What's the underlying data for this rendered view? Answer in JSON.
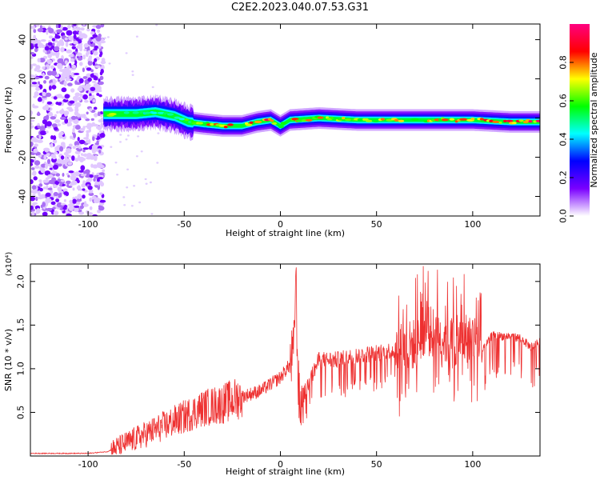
{
  "title": "C2E2.2023.040.07.53.G31",
  "chart_data": [
    {
      "type": "heatmap",
      "xlabel": "Height of straight line (km)",
      "ylabel": "Frequency (Hz)",
      "xlim": [
        -130,
        135
      ],
      "ylim": [
        -50,
        48
      ],
      "x_ticks": [
        -100,
        -50,
        0,
        50,
        100
      ],
      "y_ticks": [
        -40,
        -20,
        0,
        20,
        40
      ],
      "colorbar": {
        "label": "Normalized spectral amplitude",
        "range": [
          0,
          1
        ],
        "ticks": [
          "0.0",
          "0.2",
          "0.4",
          "0.6",
          "0.8"
        ],
        "colors": [
          "#ffffff",
          "#7a00ff",
          "#0000ff",
          "#00ffff",
          "#00ff00",
          "#ffff00",
          "#ff0000",
          "#ff0080"
        ]
      },
      "noise_region_x": [
        -130,
        -92
      ],
      "ridge": [
        {
          "x": -92,
          "y": 2,
          "v": 0.5
        },
        {
          "x": -85,
          "y": 2,
          "v": 0.7
        },
        {
          "x": -75,
          "y": 2,
          "v": 0.55
        },
        {
          "x": -65,
          "y": 3,
          "v": 0.5
        },
        {
          "x": -55,
          "y": 1,
          "v": 0.55
        },
        {
          "x": -48,
          "y": -2,
          "v": 0.6
        },
        {
          "x": -40,
          "y": -3,
          "v": 0.75
        },
        {
          "x": -30,
          "y": -4,
          "v": 0.8
        },
        {
          "x": -20,
          "y": -4,
          "v": 0.85
        },
        {
          "x": -12,
          "y": -2,
          "v": 0.85
        },
        {
          "x": -5,
          "y": -1,
          "v": 0.9
        },
        {
          "x": 0,
          "y": -4,
          "v": 0.6
        },
        {
          "x": 5,
          "y": -1,
          "v": 0.8
        },
        {
          "x": 20,
          "y": 0,
          "v": 0.75
        },
        {
          "x": 40,
          "y": -1,
          "v": 0.7
        },
        {
          "x": 60,
          "y": -1,
          "v": 0.75
        },
        {
          "x": 80,
          "y": -1,
          "v": 0.75
        },
        {
          "x": 100,
          "y": -1,
          "v": 0.8
        },
        {
          "x": 120,
          "y": -2,
          "v": 0.85
        },
        {
          "x": 135,
          "y": -2,
          "v": 0.9
        }
      ]
    },
    {
      "type": "line",
      "xlabel": "Height of straight line (km)",
      "ylabel": "SNR (10 * v/v)",
      "y_multiplier": "(x10⁴)",
      "xlim": [
        -130,
        135
      ],
      "ylim": [
        0,
        2.2
      ],
      "x_ticks": [
        -100,
        -50,
        0,
        50,
        100
      ],
      "y_ticks": [
        "0.5",
        "1.0",
        "1.5",
        "2.0"
      ],
      "line_color": "#ee3030",
      "series": [
        {
          "x": [
            -130,
            -100,
            -90,
            -85,
            -80,
            -70,
            -60,
            -50,
            -40,
            -30,
            -20,
            -10,
            0,
            5,
            7,
            8,
            9,
            10,
            12,
            15,
            20,
            30,
            40,
            50,
            60,
            70,
            75,
            80,
            85,
            90,
            100,
            105,
            110,
            120,
            125,
            130,
            135
          ],
          "values": [
            0.03,
            0.03,
            0.05,
            0.1,
            0.15,
            0.25,
            0.35,
            0.45,
            0.55,
            0.6,
            0.68,
            0.75,
            0.9,
            1.05,
            1.2,
            2.15,
            1.0,
            0.55,
            0.7,
            0.85,
            1.1,
            1.1,
            1.15,
            1.18,
            1.22,
            1.28,
            1.45,
            1.4,
            1.35,
            1.3,
            1.38,
            1.2,
            1.38,
            1.37,
            1.35,
            1.25,
            1.3
          ]
        }
      ]
    }
  ]
}
